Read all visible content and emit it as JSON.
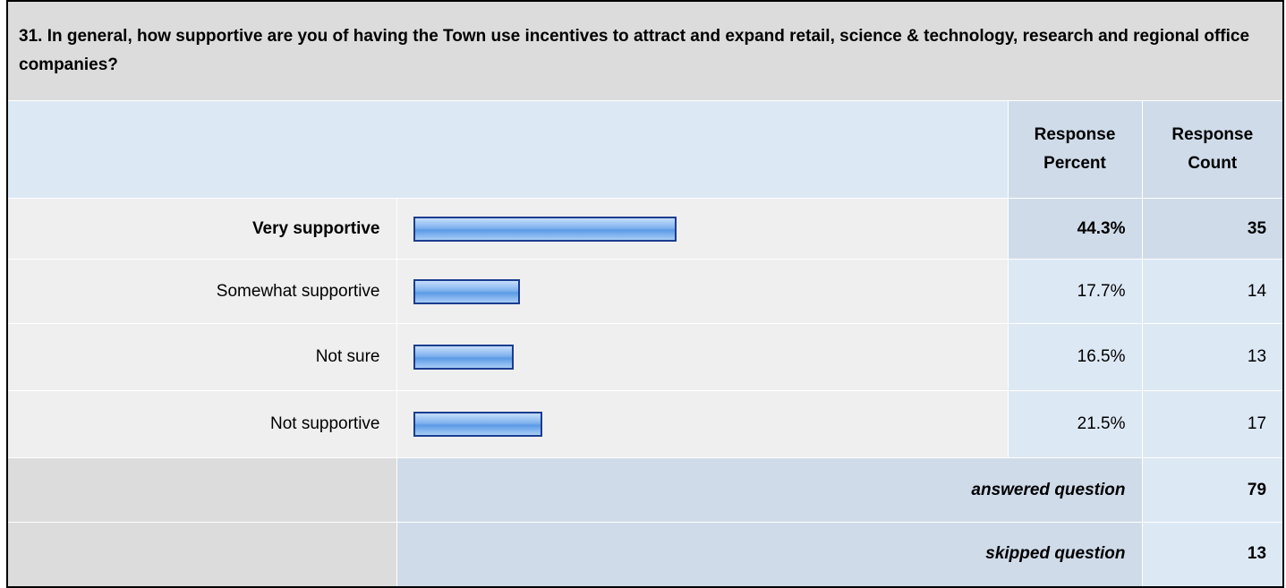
{
  "question": "31. In general, how supportive are you of having the Town use incentives to attract and expand retail, science & technology, research and regional office companies?",
  "columns": [
    "Response Percent",
    "Response Count"
  ],
  "rows": [
    {
      "label": "Very supportive",
      "percent": 44.3,
      "percent_label": "44.3%",
      "count": 35
    },
    {
      "label": "Somewhat supportive",
      "percent": 17.7,
      "percent_label": "17.7%",
      "count": 14
    },
    {
      "label": "Not sure",
      "percent": 16.5,
      "percent_label": "16.5%",
      "count": 13
    },
    {
      "label": "Not supportive",
      "percent": 21.5,
      "percent_label": "21.5%",
      "count": 17
    }
  ],
  "summary": [
    {
      "label": "answered question",
      "count": 79
    },
    {
      "label": "skipped question",
      "count": 13
    }
  ]
}
